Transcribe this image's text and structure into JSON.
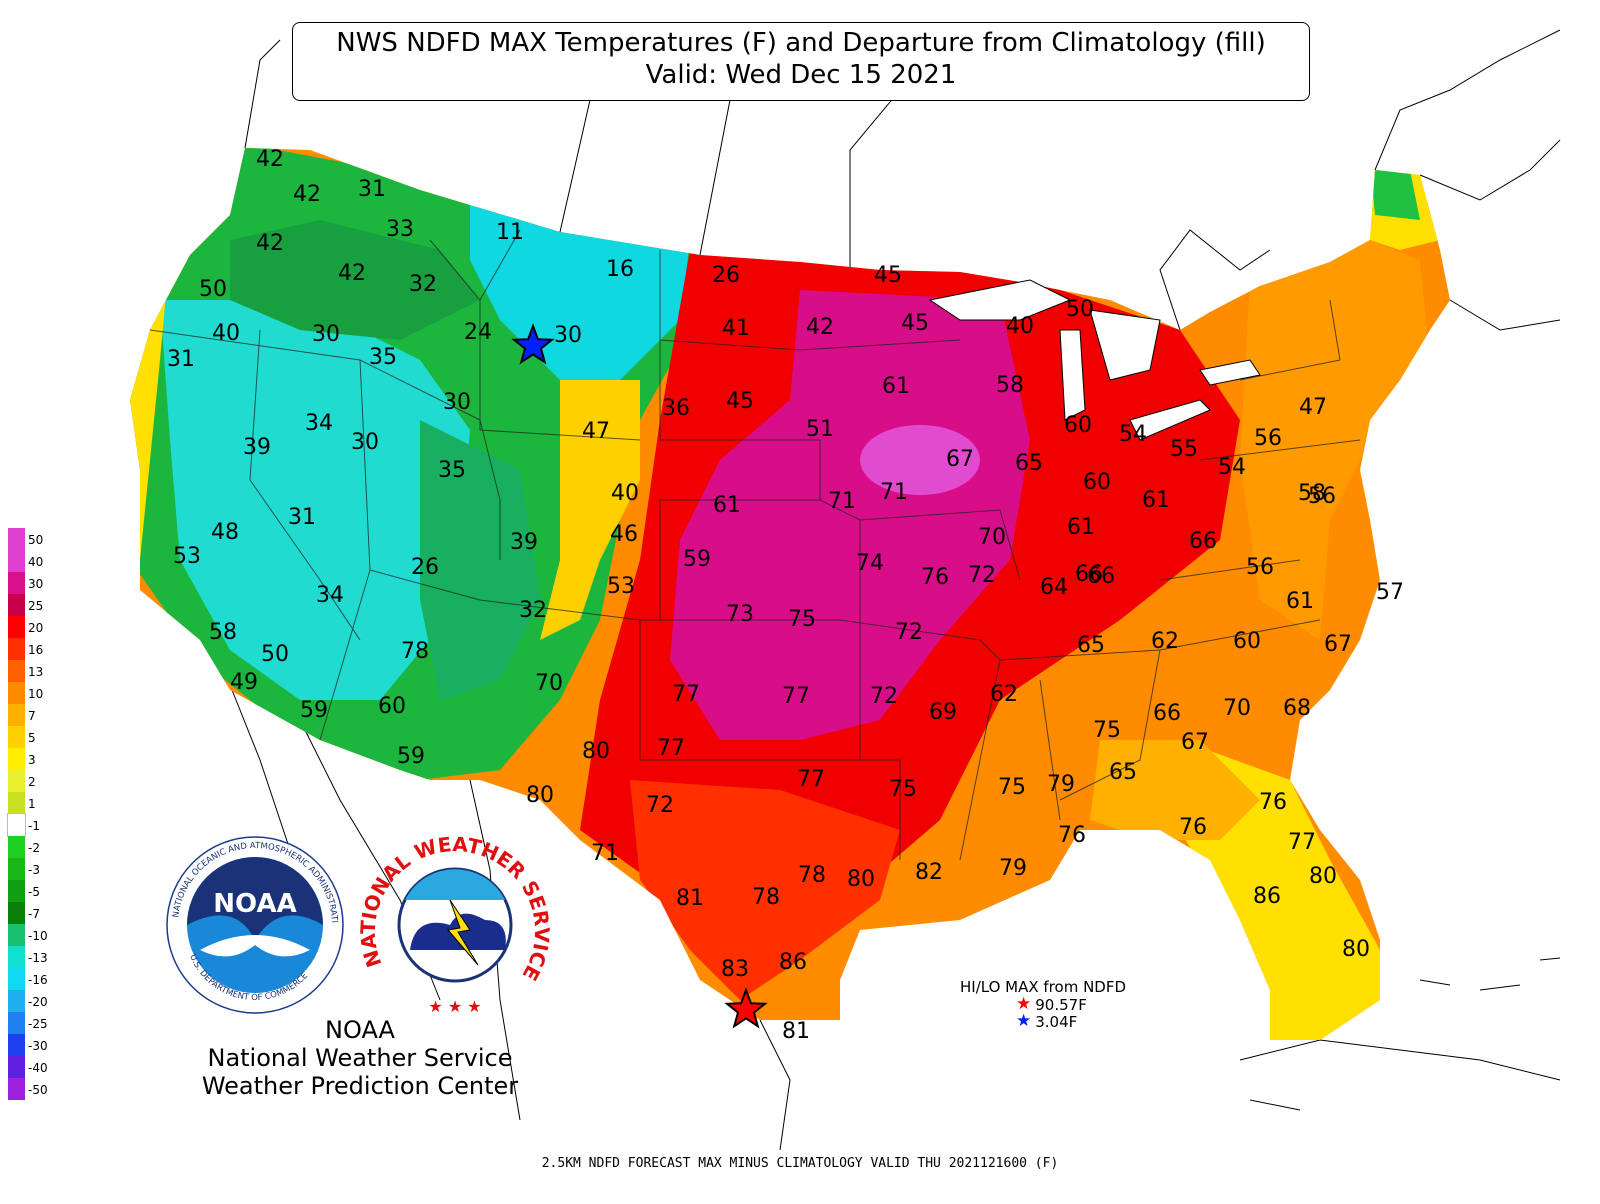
{
  "title": {
    "line1": "NWS NDFD MAX Temperatures (F) and Departure from Climatology (fill)",
    "line2": "Valid: Wed Dec 15 2021"
  },
  "legend": {
    "labels": [
      "50",
      "40",
      "30",
      "25",
      "20",
      "16",
      "13",
      "10",
      "7",
      "5",
      "3",
      "2",
      "1",
      "-1",
      "-2",
      "-3",
      "-5",
      "-7",
      "-10",
      "-13",
      "-16",
      "-20",
      "-25",
      "-30",
      "-40",
      "-50"
    ],
    "colors": [
      "#e040d0",
      "#e040d0",
      "#d8108a",
      "#c80048",
      "#ff0000",
      "#ff3000",
      "#ff6000",
      "#ff8c00",
      "#ffb000",
      "#ffd000",
      "#ffee00",
      "#e8f030",
      "#c8e020",
      "#ffffff",
      "#20d020",
      "#18b818",
      "#10a010",
      "#088008",
      "#18c070",
      "#10e0d0",
      "#10d8f0",
      "#20b0f0",
      "#2080f0",
      "#2040f0",
      "#6020e0",
      "#a020e0"
    ]
  },
  "credit": {
    "line1": "NOAA",
    "line2": "National Weather Service",
    "line3": "Weather Prediction Center"
  },
  "logos": {
    "noaa_text": "NOAA",
    "noaa_ring": "NATIONAL OCEANIC AND ATMOSPHERIC ADMINISTRATION",
    "noaa_ring_bottom": "U.S. DEPARTMENT OF COMMERCE",
    "nws_ring": "NATIONAL WEATHER SERVICE"
  },
  "hilo": {
    "title": "HI/LO MAX from NDFD",
    "hi": "90.57F",
    "lo": "3.04F",
    "hi_color": "#ff0000",
    "lo_color": "#0020ff"
  },
  "footer": "2.5KM NDFD FORECAST MAX MINUS CLIMATOLOGY VALID THU 2021121600 (F)",
  "temperatures": [
    "42",
    "42",
    "31",
    "33",
    "11",
    "42",
    "42",
    "16",
    "26",
    "50",
    "40",
    "30",
    "32",
    "24",
    "30",
    "31",
    "41",
    "42",
    "45",
    "45",
    "40",
    "50",
    "35",
    "61",
    "58",
    "36",
    "45",
    "30",
    "47",
    "34",
    "39",
    "30",
    "51",
    "60",
    "54",
    "55",
    "56",
    "47",
    "35",
    "67",
    "65",
    "54",
    "71",
    "71",
    "60",
    "58",
    "40",
    "31",
    "61",
    "61",
    "61",
    "48",
    "53",
    "46",
    "39",
    "59",
    "70",
    "66",
    "26",
    "74",
    "76",
    "72",
    "64",
    "66",
    "53",
    "73",
    "75",
    "32",
    "72",
    "65",
    "62",
    "60",
    "56",
    "61",
    "66",
    "56",
    "58",
    "50",
    "34",
    "78",
    "67",
    "57",
    "49",
    "70",
    "77",
    "77",
    "72",
    "69",
    "62",
    "59",
    "60",
    "66",
    "70",
    "68",
    "75",
    "77",
    "67",
    "59",
    "80",
    "75",
    "79",
    "77",
    "75",
    "71",
    "65",
    "80",
    "72",
    "76",
    "76",
    "76",
    "77",
    "79",
    "82",
    "80",
    "78",
    "81",
    "78",
    "80",
    "86",
    "83",
    "86",
    "80",
    "81"
  ],
  "markers": {
    "hi_star_color": "#ff0000",
    "lo_star_color": "#0020ff"
  }
}
